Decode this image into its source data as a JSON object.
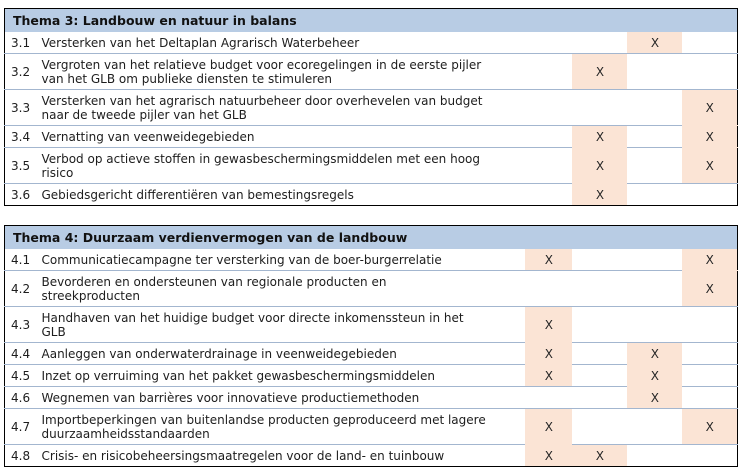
{
  "colors": {
    "header_bg": "#b8cce4",
    "mark_bg": "#fbe4d5",
    "row_line": "#a3b6cf",
    "border": "#000000",
    "text": "#1d1d1d",
    "page_bg": "#ffffff"
  },
  "mark_symbol": "X",
  "tables": [
    {
      "title": "Thema 3: Landbouw en natuur in balans",
      "rows": [
        {
          "num": "3.1",
          "text": "Versterken van het Deltaplan Agrarisch Waterbeheer",
          "marks": [
            0,
            0,
            1,
            0
          ]
        },
        {
          "num": "3.2",
          "text": "Vergroten van het relatieve budget voor ecoregelingen in de eerste pijler\nvan het GLB om publieke diensten te stimuleren",
          "marks": [
            0,
            1,
            0,
            0
          ]
        },
        {
          "num": "3.3",
          "text": "Versterken van het agrarisch natuurbeheer door overhevelen van budget\nnaar de tweede pijler van het GLB",
          "marks": [
            0,
            0,
            0,
            1
          ]
        },
        {
          "num": "3.4",
          "text": "Vernatting van veenweidegebieden",
          "marks": [
            0,
            1,
            0,
            1
          ]
        },
        {
          "num": "3.5",
          "text": "Verbod op actieve stoffen in gewasbeschermingsmiddelen met een hoog\nrisico",
          "marks": [
            0,
            1,
            0,
            1
          ]
        },
        {
          "num": "3.6",
          "text": "Gebiedsgericht differentiëren van bemestingsregels",
          "marks": [
            0,
            1,
            0,
            0
          ]
        }
      ]
    },
    {
      "title": "Thema 4: Duurzaam verdienvermogen van de landbouw",
      "rows": [
        {
          "num": "4.1",
          "text": "Communicatiecampagne ter versterking van de boer-burgerrelatie",
          "marks": [
            1,
            0,
            0,
            1
          ]
        },
        {
          "num": "4.2",
          "text": "Bevorderen en ondersteunen van regionale producten en\nstreekproducten",
          "marks": [
            0,
            0,
            0,
            1
          ]
        },
        {
          "num": "4.3",
          "text": "Handhaven van het huidige budget voor directe inkomenssteun in het\nGLB",
          "marks": [
            1,
            0,
            0,
            0
          ]
        },
        {
          "num": "4.4",
          "text": "Aanleggen van onderwaterdrainage in veenweidegebieden",
          "marks": [
            1,
            0,
            1,
            0
          ]
        },
        {
          "num": "4.5",
          "text": "Inzet op verruiming van het pakket gewasbeschermingsmiddelen",
          "marks": [
            1,
            0,
            1,
            0
          ]
        },
        {
          "num": "4.6",
          "text": "Wegnemen van barrières voor innovatieve productiemethoden",
          "marks": [
            0,
            0,
            1,
            0
          ]
        },
        {
          "num": "4.7",
          "text": "Importbeperkingen van buitenlandse producten geproduceerd met lagere\nduurzaamheidsstandaarden",
          "marks": [
            1,
            0,
            0,
            1
          ]
        },
        {
          "num": "4.8",
          "text": "Crisis- en risicobeheersingsmaatregelen voor de land- en tuinbouw",
          "marks": [
            1,
            1,
            0,
            0
          ]
        }
      ]
    }
  ]
}
